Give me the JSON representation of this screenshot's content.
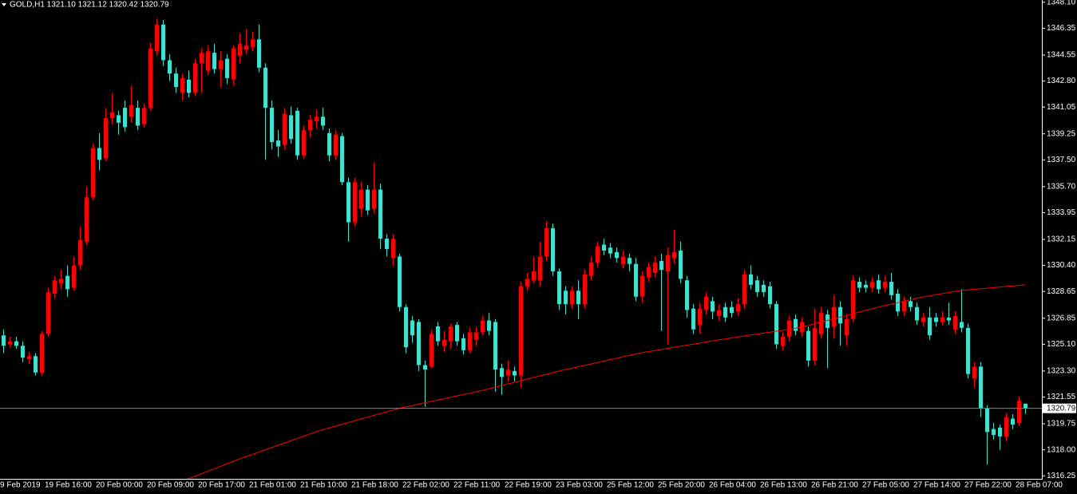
{
  "chart_data": {
    "type": "candlestick",
    "title": "GOLD,H1  1321.10 1321.12 1320.42 1320.79",
    "up_color": "#ff0000",
    "down_color": "#40e0d0",
    "categories": [
      "9 Feb 2019",
      null,
      null,
      null,
      null,
      null,
      null,
      "19 Feb 16:00",
      null,
      null,
      null,
      null,
      null,
      null,
      null,
      "20 Feb 00:00",
      null,
      null,
      null,
      null,
      null,
      null,
      null,
      "20 Feb 09:00",
      null,
      null,
      null,
      null,
      null,
      null,
      null,
      "20 Feb 17:00",
      null,
      null,
      null,
      null,
      null,
      null,
      null,
      "21 Feb 01:00",
      null,
      null,
      null,
      null,
      null,
      null,
      null,
      "21 Feb 10:00",
      null,
      null,
      null,
      null,
      null,
      null,
      null,
      "21 Feb 18:00",
      null,
      null,
      null,
      null,
      null,
      null,
      null,
      "22 Feb 02:00",
      null,
      null,
      null,
      null,
      null,
      null,
      null,
      "22 Feb 11:00",
      null,
      null,
      null,
      null,
      null,
      null,
      null,
      "22 Feb 19:00",
      null,
      null,
      null,
      null,
      null,
      null,
      null,
      "23 Feb 03:00",
      null,
      null,
      null,
      null,
      null,
      null,
      null,
      "25 Feb 12:00",
      null,
      null,
      null,
      null,
      null,
      null,
      null,
      "25 Feb 20:00",
      null,
      null,
      null,
      null,
      null,
      null,
      null,
      "26 Feb 04:00",
      null,
      null,
      null,
      null,
      null,
      null,
      null,
      "26 Feb 13:00",
      null,
      null,
      null,
      null,
      null,
      null,
      null,
      "26 Feb 21:00",
      null,
      null,
      null,
      null,
      null,
      null,
      null,
      "27 Feb 05:00",
      null,
      null,
      null,
      null,
      null,
      null,
      null,
      "27 Feb 14:00",
      null,
      null,
      null,
      null,
      null,
      null,
      null,
      "27 Feb 22:00",
      null,
      null,
      null,
      null,
      null,
      null,
      null,
      "28 Feb 07:00",
      null
    ],
    "open": [
      1325.7,
      1325.1,
      1325.3,
      1325.0,
      1324.1,
      1324.3,
      1323.2,
      1325.8,
      1328.5,
      1329.2,
      1329.7,
      1328.9,
      1330.4,
      1332.0,
      1335.0,
      1338.3,
      1337.6,
      1340.3,
      1340.5,
      1341.0,
      1340.4,
      1341.0,
      1339.9,
      1341.0,
      1344.8,
      1346.6,
      1344.2,
      1343.3,
      1342.0,
      1342.9,
      1342.0,
      1344.0,
      1343.5,
      1344.7,
      1343.6,
      1344.3,
      1342.9,
      1344.5,
      1344.9,
      1345.1,
      1345.6,
      1343.7,
      1341.0,
      1338.8,
      1338.5,
      1340.5,
      1340.8,
      1337.8,
      1339.5,
      1340.1,
      1340.4,
      1339.3,
      1337.8,
      1339.1,
      1336.0,
      1333.3,
      1334.2,
      1335.5,
      1334.2,
      1335.5,
      1332.2,
      1330.9,
      1331.0,
      1327.6,
      1326.7,
      1326.6,
      1323.7,
      1323.6,
      1326.3,
      1325.0,
      1325.3,
      1326.4,
      1325.5,
      1324.7,
      1325.4,
      1325.9,
      1326.7,
      1326.6,
      1323.5,
      1323.0,
      1323.3,
      1323.0,
      1329.0,
      1329.4,
      1329.4,
      1331.0,
      1332.9,
      1330.0,
      1328.7,
      1327.8,
      1328.7,
      1327.8,
      1329.7,
      1330.6,
      1331.8,
      1331.6,
      1331.3,
      1330.5,
      1330.9,
      1330.5,
      1328.3,
      1329.6,
      1329.9,
      1330.7,
      1330.0,
      1330.9,
      1331.4,
      1329.4,
      1327.5,
      1326.4,
      1327.4,
      1328.0,
      1327.0,
      1327.6,
      1327.6,
      1327.3,
      1327.8,
      1329.8,
      1329.4,
      1329.1,
      1329.0,
      1327.8,
      1325.0,
      1325.6,
      1326.8,
      1325.9,
      1326.0,
      1324.0,
      1325.8,
      1327.1,
      1326.3,
      1327.6,
      1325.7,
      1326.8,
      1329.3,
      1329.1,
      1328.9,
      1329.4,
      1328.9,
      1329.3,
      1328.5,
      1327.3,
      1328.0,
      1327.6,
      1326.6,
      1326.9,
      1326.9,
      1326.6,
      1326.9,
      1326.1,
      1326.6,
      1326.2,
      1322.8,
      1323.6,
      1320.8,
      1319.4,
      1319.5,
      1318.9,
      1320.1,
      1319.8,
      1321.1
    ],
    "high": [
      1326.1,
      1325.6,
      1325.6,
      1325.3,
      1324.6,
      1324.5,
      1326.0,
      1328.9,
      1329.7,
      1330.1,
      1330.4,
      1331.0,
      1333.0,
      1335.7,
      1338.6,
      1339.3,
      1341.0,
      1342.0,
      1340.8,
      1341.5,
      1342.5,
      1341.5,
      1341.3,
      1345.4,
      1347.0,
      1346.9,
      1344.6,
      1343.7,
      1343.3,
      1343.5,
      1344.3,
      1345.0,
      1345.2,
      1345.3,
      1344.8,
      1344.6,
      1345.2,
      1346.0,
      1346.3,
      1346.1,
      1346.6,
      1344.0,
      1341.5,
      1339.5,
      1341.0,
      1341.1,
      1341.0,
      1339.8,
      1340.5,
      1340.9,
      1341.0,
      1339.6,
      1339.5,
      1339.3,
      1336.3,
      1336.3,
      1336.0,
      1335.8,
      1337.3,
      1335.9,
      1332.5,
      1332.5,
      1331.2,
      1327.8,
      1327.0,
      1326.8,
      1324.0,
      1326.1,
      1326.6,
      1326.0,
      1326.5,
      1326.6,
      1325.8,
      1326.2,
      1326.3,
      1327.0,
      1327.2,
      1326.8,
      1323.8,
      1324.0,
      1323.6,
      1329.3,
      1329.9,
      1331.0,
      1332.0,
      1333.4,
      1333.2,
      1330.2,
      1329.0,
      1329.0,
      1329.4,
      1330.1,
      1331.0,
      1332.0,
      1332.2,
      1331.9,
      1331.6,
      1331.4,
      1331.2,
      1330.9,
      1330.0,
      1330.6,
      1331.0,
      1331.2,
      1331.6,
      1332.8,
      1332.0,
      1329.7,
      1327.8,
      1327.9,
      1328.6,
      1328.3,
      1327.8,
      1327.9,
      1328.0,
      1328.2,
      1330.1,
      1330.4,
      1329.7,
      1329.4,
      1329.3,
      1328.0,
      1325.9,
      1327.0,
      1327.1,
      1326.9,
      1326.3,
      1327.5,
      1327.6,
      1327.4,
      1328.4,
      1328.0,
      1327.1,
      1329.7,
      1329.6,
      1329.4,
      1329.6,
      1329.8,
      1329.7,
      1329.9,
      1328.8,
      1328.3,
      1328.3,
      1327.9,
      1327.2,
      1327.6,
      1327.2,
      1327.3,
      1327.9,
      1327.3,
      1328.8,
      1326.5,
      1323.9,
      1323.9,
      1321.0,
      1319.8,
      1319.7,
      1320.5,
      1320.4,
      1321.6,
      1321.12
    ],
    "low": [
      1324.5,
      1324.9,
      1324.8,
      1323.9,
      1323.8,
      1323.0,
      1323.0,
      1325.6,
      1328.2,
      1328.8,
      1328.3,
      1328.7,
      1330.1,
      1331.8,
      1334.8,
      1336.8,
      1337.4,
      1339.9,
      1339.2,
      1339.4,
      1340.0,
      1339.5,
      1339.7,
      1340.8,
      1344.5,
      1343.8,
      1342.8,
      1342.0,
      1341.5,
      1341.7,
      1341.8,
      1342.0,
      1343.2,
      1343.3,
      1342.4,
      1342.6,
      1342.5,
      1344.0,
      1344.6,
      1344.8,
      1343.4,
      1337.5,
      1338.2,
      1337.7,
      1338.2,
      1338.6,
      1337.5,
      1337.6,
      1339.0,
      1339.6,
      1339.5,
      1337.4,
      1337.5,
      1335.8,
      1332.0,
      1333.0,
      1333.7,
      1333.8,
      1333.9,
      1331.5,
      1331.0,
      1330.4,
      1327.3,
      1324.5,
      1325.2,
      1323.3,
      1320.9,
      1323.5,
      1325.0,
      1324.6,
      1324.8,
      1325.0,
      1324.4,
      1324.5,
      1325.0,
      1325.7,
      1325.7,
      1321.9,
      1321.7,
      1322.6,
      1322.6,
      1322.2,
      1328.7,
      1329.2,
      1329.0,
      1330.7,
      1329.7,
      1327.4,
      1327.1,
      1327.5,
      1326.8,
      1327.5,
      1329.4,
      1330.3,
      1331.1,
      1330.9,
      1330.6,
      1330.2,
      1330.0,
      1328.0,
      1327.9,
      1329.3,
      1329.6,
      1326.0,
      1325.1,
      1330.5,
      1329.2,
      1326.9,
      1325.8,
      1325.8,
      1327.1,
      1326.8,
      1326.7,
      1326.6,
      1326.9,
      1327.0,
      1327.5,
      1328.8,
      1328.3,
      1328.3,
      1327.5,
      1324.8,
      1324.7,
      1325.3,
      1325.7,
      1325.6,
      1323.6,
      1323.7,
      1325.5,
      1323.5,
      1325.5,
      1325.0,
      1325.0,
      1326.6,
      1328.6,
      1328.6,
      1328.6,
      1328.5,
      1328.6,
      1328.1,
      1327.0,
      1327.0,
      1327.3,
      1326.4,
      1326.3,
      1325.4,
      1326.3,
      1326.4,
      1326.4,
      1325.8,
      1325.9,
      1322.8,
      1322.2,
      1320.2,
      1317.0,
      1318.7,
      1318.0,
      1318.6,
      1319.4,
      1319.6,
      1320.42
    ],
    "close": [
      1325.0,
      1325.3,
      1325.0,
      1324.2,
      1324.3,
      1323.2,
      1325.8,
      1328.6,
      1329.4,
      1329.5,
      1328.8,
      1330.4,
      1332.1,
      1335.0,
      1338.3,
      1337.5,
      1340.3,
      1340.7,
      1340.0,
      1339.7,
      1341.2,
      1339.8,
      1341.0,
      1345.0,
      1346.6,
      1344.2,
      1343.3,
      1342.4,
      1343.0,
      1342.0,
      1344.0,
      1344.7,
      1344.8,
      1343.6,
      1344.2,
      1343.0,
      1345.0,
      1345.3,
      1345.2,
      1345.6,
      1343.7,
      1341.0,
      1338.7,
      1338.4,
      1340.6,
      1338.9,
      1337.8,
      1339.5,
      1340.2,
      1340.4,
      1339.8,
      1337.8,
      1339.2,
      1336.0,
      1333.3,
      1336.0,
      1335.5,
      1334.1,
      1335.5,
      1332.2,
      1331.5,
      1332.2,
      1327.6,
      1324.9,
      1325.7,
      1323.7,
      1323.4,
      1325.8,
      1325.3,
      1325.4,
      1326.3,
      1325.3,
      1324.7,
      1325.9,
      1325.9,
      1326.7,
      1326.0,
      1323.4,
      1322.9,
      1323.4,
      1323.0,
      1329.0,
      1329.5,
      1330.0,
      1331.0,
      1332.9,
      1330.0,
      1327.8,
      1327.8,
      1328.7,
      1327.8,
      1329.8,
      1330.6,
      1331.7,
      1331.4,
      1331.2,
      1330.9,
      1331.0,
      1330.5,
      1328.3,
      1329.7,
      1330.3,
      1330.6,
      1330.1,
      1331.1,
      1331.3,
      1329.5,
      1327.4,
      1326.1,
      1327.5,
      1328.3,
      1327.3,
      1327.4,
      1326.9,
      1327.2,
      1327.8,
      1329.8,
      1329.1,
      1328.6,
      1328.6,
      1327.8,
      1325.1,
      1325.6,
      1326.7,
      1326.0,
      1326.6,
      1324.0,
      1326.2,
      1327.2,
      1326.2,
      1327.6,
      1326.5,
      1326.8,
      1329.4,
      1328.9,
      1328.9,
      1329.3,
      1328.8,
      1329.3,
      1328.4,
      1327.3,
      1328.0,
      1327.6,
      1326.7,
      1326.9,
      1325.7,
      1326.6,
      1326.9,
      1326.7,
      1327.0,
      1326.2,
      1323.1,
      1323.6,
      1320.8,
      1319.2,
      1319.0,
      1318.9,
      1320.2,
      1319.7,
      1321.3,
      1320.79
    ],
    "ma": {
      "color": "#ff0000",
      "values": [
        null,
        null,
        null,
        null,
        null,
        null,
        null,
        null,
        null,
        null,
        null,
        null,
        null,
        null,
        null,
        null,
        null,
        null,
        null,
        null,
        null,
        null,
        null,
        null,
        null,
        null,
        null,
        null,
        1315.9,
        1316.07,
        1316.23,
        1316.4,
        1316.57,
        1316.73,
        1316.9,
        1317.07,
        1317.23,
        1317.4,
        1317.55,
        1317.7,
        1317.86,
        1318.01,
        1318.16,
        1318.31,
        1318.46,
        1318.62,
        1318.77,
        1318.92,
        1319.07,
        1319.22,
        1319.36,
        1319.48,
        1319.6,
        1319.72,
        1319.84,
        1319.96,
        1320.08,
        1320.2,
        1320.32,
        1320.44,
        1320.56,
        1320.68,
        1320.8,
        1320.89,
        1320.98,
        1321.08,
        1321.17,
        1321.26,
        1321.35,
        1321.44,
        1321.54,
        1321.63,
        1321.72,
        1321.81,
        1321.9,
        1322.0,
        1322.11,
        1322.22,
        1322.33,
        1322.44,
        1322.54,
        1322.65,
        1322.76,
        1322.87,
        1322.98,
        1323.08,
        1323.19,
        1323.3,
        1323.4,
        1323.49,
        1323.59,
        1323.68,
        1323.78,
        1323.88,
        1323.97,
        1324.07,
        1324.16,
        1324.26,
        1324.36,
        1324.45,
        1324.54,
        1324.61,
        1324.68,
        1324.75,
        1324.82,
        1324.9,
        1324.97,
        1325.04,
        1325.11,
        1325.18,
        1325.26,
        1325.33,
        1325.4,
        1325.46,
        1325.53,
        1325.59,
        1325.66,
        1325.72,
        1325.78,
        1325.85,
        1325.91,
        1325.98,
        1326.04,
        1326.1,
        1326.17,
        1326.26,
        1326.37,
        1326.48,
        1326.6,
        1326.71,
        1326.82,
        1326.93,
        1327.04,
        1327.16,
        1327.27,
        1327.38,
        1327.49,
        1327.6,
        1327.7,
        1327.8,
        1327.9,
        1328.0,
        1328.1,
        1328.2,
        1328.28,
        1328.35,
        1328.43,
        1328.51,
        1328.58,
        1328.66,
        1328.72,
        1328.76,
        1328.8,
        1328.83,
        1328.87,
        1328.91,
        1328.95,
        1328.99,
        1329.02,
        1329.06,
        1329.1
      ]
    },
    "last_price": 1320.79,
    "last_price_color": "#778899",
    "ylim": [
      1316.05,
      1348.25
    ],
    "yticks": [
      {
        "value": 1348.1,
        "label": "1348.10"
      },
      1346.35,
      1344.55,
      {
        "value": 1342.8,
        "label": "1342.80"
      },
      1341.05,
      1339.25,
      {
        "value": 1337.5,
        "label": "1337.50"
      },
      {
        "value": 1335.7,
        "label": "1335.70"
      },
      1333.95,
      1332.15,
      {
        "value": 1330.4,
        "label": "1330.40"
      },
      1328.65,
      1326.85,
      {
        "value": 1325.1,
        "label": "1325.10"
      },
      {
        "value": 1323.3,
        "label": "1323.30"
      },
      1321.55,
      1319.75,
      {
        "value": 1318.0,
        "label": "1318.00"
      },
      1316.25
    ]
  }
}
